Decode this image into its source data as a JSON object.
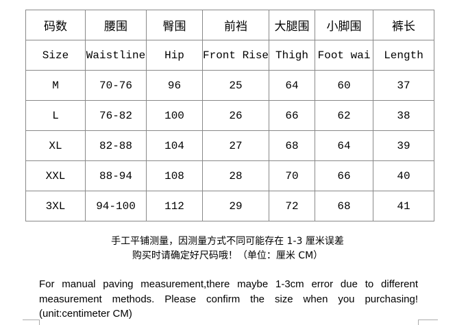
{
  "table": {
    "header_zh": [
      "码数",
      "腰围",
      "臀围",
      "前裆",
      "大腿围",
      "小脚围",
      "裤长"
    ],
    "header_en": [
      "Size",
      "Waistline",
      "Hip",
      "Front Rise",
      "Thigh",
      "Foot wai",
      "Length"
    ],
    "rows": [
      [
        "M",
        "70-76",
        "96",
        "25",
        "64",
        "60",
        "37"
      ],
      [
        "L",
        "76-82",
        "100",
        "26",
        "66",
        "62",
        "38"
      ],
      [
        "XL",
        "82-88",
        "104",
        "27",
        "68",
        "64",
        "39"
      ],
      [
        "XXL",
        "88-94",
        "108",
        "28",
        "70",
        "66",
        "40"
      ],
      [
        "3XL",
        "94-100",
        "112",
        "29",
        "72",
        "68",
        "41"
      ]
    ]
  },
  "notes": {
    "zh_line1": "手工平铺测量，因测量方式不同可能存在 1-3 厘米误差",
    "zh_line2": "购买时请确定好尺码哦！（单位：厘米 CM）",
    "en": "For manual paving measurement,there maybe 1-3cm error due to different measurement methods. Please confirm the size when you purchasing! (unit:centimeter CM)"
  }
}
